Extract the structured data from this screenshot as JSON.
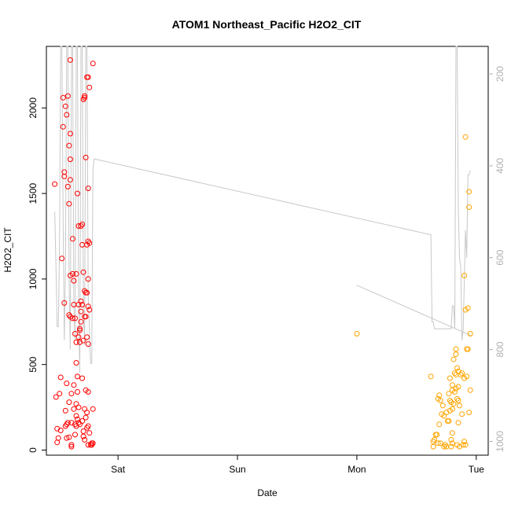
{
  "chart_data": {
    "type": "scatter",
    "title": "ATOM1 Northeast_Pacific H2O2_CIT",
    "xlabel": "Date",
    "ylabel": "H2O2_CIT",
    "x_ticks": [
      {
        "label": "Sat",
        "day": 1
      },
      {
        "label": "Sun",
        "day": 2
      },
      {
        "label": "Mon",
        "day": 3
      },
      {
        "label": "Tue",
        "day": 4
      }
    ],
    "xlim": [
      0.4,
      4.1
    ],
    "ylim": [
      -30,
      2360
    ],
    "y_ticks": [
      0,
      500,
      1000,
      1500,
      2000
    ],
    "y2_ticks": [
      200,
      400,
      600,
      800,
      1000
    ],
    "y2lim": [
      1030,
      140
    ],
    "grid": false,
    "colors": {
      "red": "#ff0000",
      "orange": "#ffa500",
      "gray": "#c8c8c8"
    },
    "series": [
      {
        "color": "red",
        "points": [
          [
            0.47,
            1555
          ],
          [
            0.48,
            310
          ],
          [
            0.49,
            125
          ],
          [
            0.49,
            45
          ],
          [
            0.5,
            70
          ],
          [
            0.51,
            330
          ],
          [
            0.52,
            115
          ],
          [
            0.52,
            425
          ],
          [
            0.53,
            1120
          ],
          [
            0.54,
            2060
          ],
          [
            0.54,
            1890
          ],
          [
            0.55,
            1600
          ],
          [
            0.55,
            1625
          ],
          [
            0.55,
            860
          ],
          [
            0.56,
            2010
          ],
          [
            0.56,
            230
          ],
          [
            0.56,
            140
          ],
          [
            0.57,
            1960
          ],
          [
            0.57,
            390
          ],
          [
            0.57,
            150
          ],
          [
            0.57,
            70
          ],
          [
            0.58,
            1540
          ],
          [
            0.58,
            2070
          ],
          [
            0.58,
            160
          ],
          [
            0.59,
            1780
          ],
          [
            0.59,
            1440
          ],
          [
            0.59,
            790
          ],
          [
            0.59,
            280
          ],
          [
            0.59,
            75
          ],
          [
            0.6,
            1700
          ],
          [
            0.6,
            2280
          ],
          [
            0.6,
            1850
          ],
          [
            0.6,
            1580
          ],
          [
            0.6,
            1020
          ],
          [
            0.6,
            780
          ],
          [
            0.61,
            330
          ],
          [
            0.61,
            160
          ],
          [
            0.61,
            30
          ],
          [
            0.61,
            20
          ],
          [
            0.62,
            1235
          ],
          [
            0.62,
            1030
          ],
          [
            0.62,
            770
          ],
          [
            0.63,
            990
          ],
          [
            0.63,
            850
          ],
          [
            0.63,
            380
          ],
          [
            0.63,
            240
          ],
          [
            0.64,
            770
          ],
          [
            0.64,
            680
          ],
          [
            0.64,
            150
          ],
          [
            0.64,
            90
          ],
          [
            0.65,
            1030
          ],
          [
            0.65,
            630
          ],
          [
            0.65,
            510
          ],
          [
            0.65,
            270
          ],
          [
            0.65,
            200
          ],
          [
            0.65,
            140
          ],
          [
            0.66,
            1500
          ],
          [
            0.66,
            430
          ],
          [
            0.66,
            340
          ],
          [
            0.66,
            180
          ],
          [
            0.67,
            1310
          ],
          [
            0.67,
            850
          ],
          [
            0.67,
            660
          ],
          [
            0.67,
            250
          ],
          [
            0.67,
            160
          ],
          [
            0.68,
            700
          ],
          [
            0.68,
            630
          ],
          [
            0.68,
            150
          ],
          [
            0.68,
            710
          ],
          [
            0.69,
            1310
          ],
          [
            0.69,
            870
          ],
          [
            0.69,
            810
          ],
          [
            0.69,
            750
          ],
          [
            0.7,
            1200
          ],
          [
            0.7,
            1320
          ],
          [
            0.7,
            850
          ],
          [
            0.7,
            420
          ],
          [
            0.7,
            170
          ],
          [
            0.71,
            2050
          ],
          [
            0.71,
            1040
          ],
          [
            0.71,
            640
          ],
          [
            0.71,
            110
          ],
          [
            0.71,
            80
          ],
          [
            0.72,
            2060
          ],
          [
            0.72,
            2070
          ],
          [
            0.72,
            930
          ],
          [
            0.72,
            780
          ],
          [
            0.72,
            240
          ],
          [
            0.72,
            60
          ],
          [
            0.73,
            1710
          ],
          [
            0.73,
            920
          ],
          [
            0.73,
            780
          ],
          [
            0.73,
            350
          ],
          [
            0.73,
            190
          ],
          [
            0.74,
            2180
          ],
          [
            0.74,
            1200
          ],
          [
            0.74,
            920
          ],
          [
            0.74,
            660
          ],
          [
            0.74,
            220
          ],
          [
            0.74,
            130
          ],
          [
            0.75,
            2180
          ],
          [
            0.75,
            1530
          ],
          [
            0.75,
            1220
          ],
          [
            0.75,
            1000
          ],
          [
            0.75,
            840
          ],
          [
            0.75,
            620
          ],
          [
            0.75,
            340
          ],
          [
            0.75,
            140
          ],
          [
            0.75,
            30
          ],
          [
            0.76,
            2120
          ],
          [
            0.76,
            1210
          ],
          [
            0.76,
            820
          ],
          [
            0.76,
            100
          ],
          [
            0.77,
            30
          ],
          [
            0.78,
            30
          ],
          [
            0.78,
            40
          ],
          [
            0.79,
            2260
          ],
          [
            0.79,
            240
          ],
          [
            0.79,
            40
          ]
        ]
      },
      {
        "color": "orange",
        "points": [
          [
            3.0,
            680
          ],
          [
            3.62,
            430
          ],
          [
            3.64,
            50
          ],
          [
            3.64,
            20
          ],
          [
            3.65,
            60
          ],
          [
            3.66,
            90
          ],
          [
            3.67,
            90
          ],
          [
            3.68,
            300
          ],
          [
            3.68,
            40
          ],
          [
            3.69,
            320
          ],
          [
            3.69,
            150
          ],
          [
            3.7,
            290
          ],
          [
            3.7,
            40
          ],
          [
            3.71,
            210
          ],
          [
            3.72,
            260
          ],
          [
            3.73,
            20
          ],
          [
            3.73,
            200
          ],
          [
            3.74,
            30
          ],
          [
            3.75,
            20
          ],
          [
            3.75,
            220
          ],
          [
            3.76,
            170
          ],
          [
            3.77,
            170
          ],
          [
            3.77,
            330
          ],
          [
            3.78,
            420
          ],
          [
            3.78,
            290
          ],
          [
            3.78,
            230
          ],
          [
            3.79,
            280
          ],
          [
            3.79,
            60
          ],
          [
            3.79,
            20
          ],
          [
            3.8,
            380
          ],
          [
            3.8,
            350
          ],
          [
            3.8,
            240
          ],
          [
            3.8,
            100
          ],
          [
            3.8,
            40
          ],
          [
            3.81,
            270
          ],
          [
            3.81,
            530
          ],
          [
            3.82,
            340
          ],
          [
            3.82,
            450
          ],
          [
            3.83,
            590
          ],
          [
            3.83,
            560
          ],
          [
            3.83,
            440
          ],
          [
            3.83,
            360
          ],
          [
            3.84,
            480
          ],
          [
            3.84,
            300
          ],
          [
            3.84,
            30
          ],
          [
            3.85,
            460
          ],
          [
            3.85,
            370
          ],
          [
            3.85,
            290
          ],
          [
            3.85,
            160
          ],
          [
            3.86,
            260
          ],
          [
            3.86,
            20
          ],
          [
            3.87,
            440
          ],
          [
            3.88,
            450
          ],
          [
            3.88,
            210
          ],
          [
            3.89,
            30
          ],
          [
            3.9,
            1020
          ],
          [
            3.9,
            420
          ],
          [
            3.9,
            50
          ],
          [
            3.91,
            820
          ],
          [
            3.91,
            1830
          ],
          [
            3.91,
            30
          ],
          [
            3.92,
            590
          ],
          [
            3.92,
            430
          ],
          [
            3.93,
            830
          ],
          [
            3.93,
            590
          ],
          [
            3.94,
            1510
          ],
          [
            3.94,
            1420
          ],
          [
            3.94,
            220
          ],
          [
            3.95,
            680
          ],
          [
            3.95,
            350
          ]
        ]
      }
    ],
    "altitude_line": [
      [
        0.47,
        500
      ],
      [
        0.48,
        620
      ],
      [
        0.49,
        750
      ],
      [
        0.5,
        750
      ],
      [
        0.51,
        580
      ],
      [
        0.52,
        120
      ],
      [
        0.53,
        120
      ],
      [
        0.54,
        520
      ],
      [
        0.55,
        780
      ],
      [
        0.56,
        620
      ],
      [
        0.57,
        120
      ],
      [
        0.58,
        120
      ],
      [
        0.59,
        650
      ],
      [
        0.6,
        800
      ],
      [
        0.61,
        120
      ],
      [
        0.62,
        120
      ],
      [
        0.63,
        700
      ],
      [
        0.64,
        780
      ],
      [
        0.65,
        120
      ],
      [
        0.66,
        120
      ],
      [
        0.67,
        720
      ],
      [
        0.68,
        850
      ],
      [
        0.69,
        120
      ],
      [
        0.7,
        120
      ],
      [
        0.71,
        720
      ],
      [
        0.72,
        790
      ],
      [
        0.73,
        120
      ],
      [
        0.74,
        120
      ],
      [
        0.75,
        680
      ],
      [
        0.76,
        750
      ],
      [
        0.77,
        830
      ],
      [
        0.78,
        830
      ],
      [
        0.79,
        410
      ],
      [
        0.8,
        385
      ],
      [
        3.62,
        550
      ],
      [
        3.63,
        740
      ],
      [
        3.64,
        740
      ],
      [
        3.65,
        755
      ],
      [
        3.66,
        755
      ],
      [
        3.67,
        755
      ],
      [
        3.68,
        755
      ],
      [
        3.69,
        755
      ],
      [
        3.7,
        755
      ],
      [
        3.71,
        755
      ],
      [
        3.72,
        755
      ],
      [
        3.73,
        755
      ],
      [
        3.74,
        755
      ],
      [
        3.75,
        755
      ],
      [
        3.76,
        755
      ],
      [
        3.77,
        755
      ],
      [
        3.78,
        755
      ],
      [
        3.79,
        755
      ],
      [
        3.8,
        705
      ],
      [
        3.81,
        705
      ],
      [
        3.82,
        755
      ],
      [
        3.83,
        120
      ],
      [
        3.84,
        120
      ],
      [
        3.85,
        500
      ],
      [
        3.86,
        600
      ],
      [
        3.87,
        620
      ],
      [
        3.88,
        780
      ],
      [
        3.89,
        760
      ],
      [
        3.9,
        650
      ],
      [
        3.91,
        540
      ],
      [
        3.92,
        600
      ],
      [
        3.93,
        420
      ],
      [
        3.94,
        420
      ],
      [
        3.95,
        410
      ]
    ],
    "altitude_line2": [
      [
        3.0,
        660
      ],
      [
        3.96,
        770
      ]
    ]
  }
}
